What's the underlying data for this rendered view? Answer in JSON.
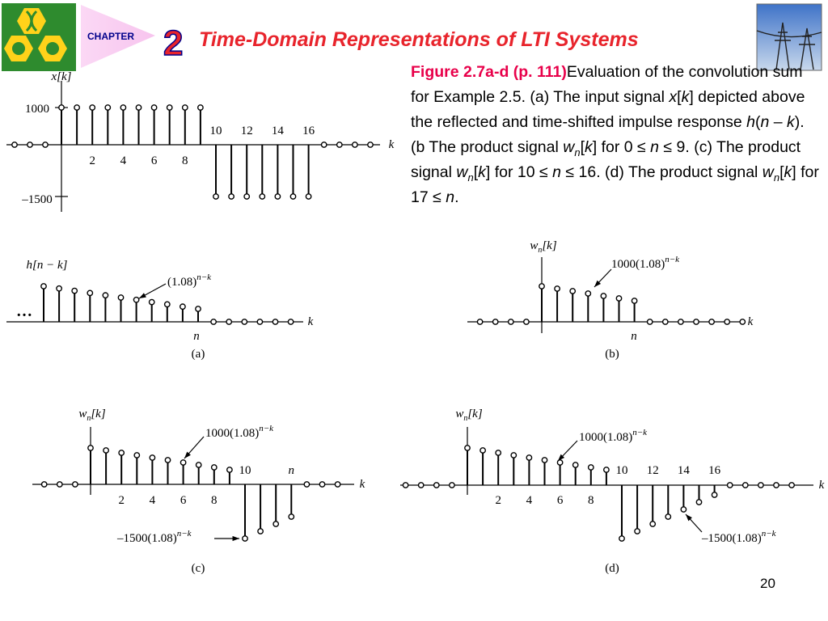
{
  "header": {
    "chapter": "CHAPTER",
    "number": "2",
    "title": "Time-Domain Representations of LTI Systems"
  },
  "caption": [
    "Figure 2.7a-d  (p. 111)",
    "Evaluation of the convolution sum for Example 2.5.  (a) The input signal ",
    "x",
    "[",
    "k",
    "] depicted above the reflected and time-shifted impulse response ",
    "h",
    "(",
    "n",
    " – ",
    "k",
    "). (b The product signal ",
    "w",
    "n",
    "[",
    "k",
    "] for 0 ≤ ",
    "n",
    " ≤ 9.  (c) The product signal ",
    "w",
    "n",
    "[",
    "k",
    "] for 10 ≤ ",
    "n",
    " ≤ 16. (d) The product signal ",
    "w",
    "n",
    "[",
    "k",
    "] for 17 ≤  ",
    "n",
    "."
  ],
  "panel_x": {
    "ylabel": "x[k]",
    "ytick_top": "1000",
    "ytick_bottom": "–1500",
    "ticks_below": [
      "2",
      "4",
      "6",
      "8"
    ],
    "ticks_above": [
      "10",
      "12",
      "14",
      "16"
    ],
    "axis": "k"
  },
  "panel_a": {
    "ylabel": "h[n − k]",
    "ellipsis": "…",
    "note": {
      "base": "(1.08)",
      "sup": "n−k"
    },
    "n": "n",
    "axis": "k",
    "label": "(a)"
  },
  "panel_b": {
    "ylabel": {
      "base": "w",
      "sub": "n",
      "rest": "[k]"
    },
    "note": {
      "base": "1000(1.08)",
      "sup": "n−k"
    },
    "n": "n",
    "axis": "k",
    "label": "(b)"
  },
  "panel_c": {
    "ylabel": {
      "base": "w",
      "sub": "n",
      "rest": "[k]"
    },
    "note_top": {
      "base": "1000(1.08)",
      "sup": "n−k"
    },
    "note_bottom": {
      "base": "–1500(1.08)",
      "sup": "n−k"
    },
    "ticks_below": [
      "2",
      "4",
      "6",
      "8"
    ],
    "ticks_above": [
      "10",
      "n"
    ],
    "axis": "k",
    "label": "(c)"
  },
  "panel_d": {
    "ylabel": {
      "base": "w",
      "sub": "n",
      "rest": "[k]"
    },
    "note_top": {
      "base": "1000(1.08)",
      "sup": "n−k"
    },
    "note_bottom": {
      "base": "–1500(1.08)",
      "sup": "n−k"
    },
    "ticks_below": [
      "2",
      "4",
      "6",
      "8"
    ],
    "ticks_above": [
      "10",
      "12",
      "14",
      "16"
    ],
    "axis": "k",
    "label": "(d)"
  },
  "page_number": "20"
}
